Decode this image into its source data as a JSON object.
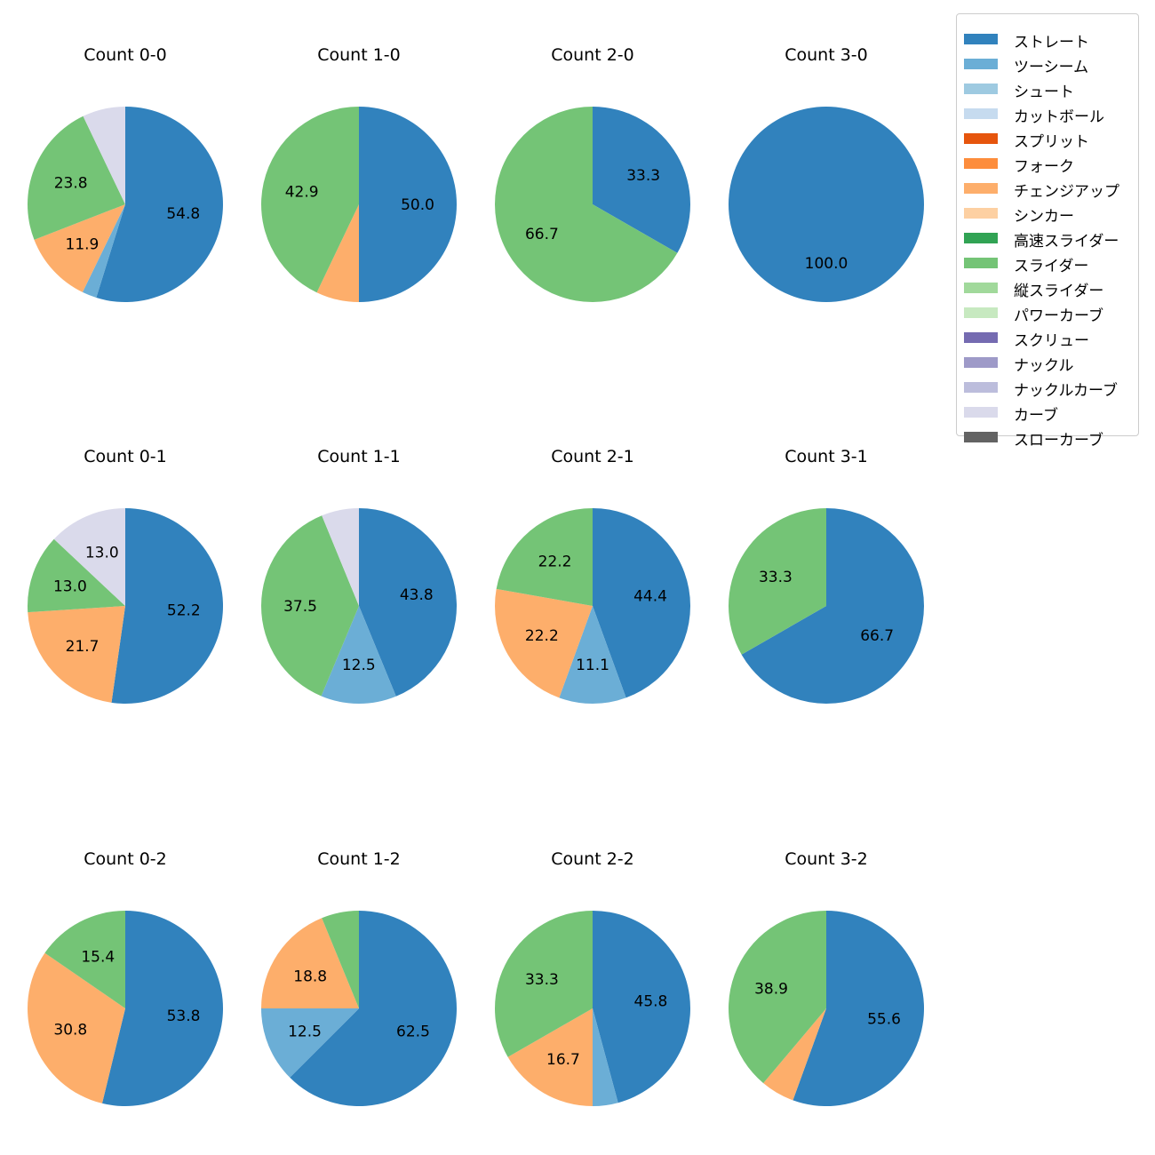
{
  "legend": {
    "items": [
      {
        "label": "ストレート",
        "color": "#3182bd"
      },
      {
        "label": "ツーシーム",
        "color": "#6baed6"
      },
      {
        "label": "シュート",
        "color": "#9ecae1"
      },
      {
        "label": "カットボール",
        "color": "#c6dbef"
      },
      {
        "label": "スプリット",
        "color": "#e6550d"
      },
      {
        "label": "フォーク",
        "color": "#fd8d3c"
      },
      {
        "label": "チェンジアップ",
        "color": "#fdae6b"
      },
      {
        "label": "シンカー",
        "color": "#fdd0a2"
      },
      {
        "label": "高速スライダー",
        "color": "#31a354"
      },
      {
        "label": "スライダー",
        "color": "#74c476"
      },
      {
        "label": "縦スライダー",
        "color": "#a1d99b"
      },
      {
        "label": "パワーカーブ",
        "color": "#c7e9c0"
      },
      {
        "label": "スクリュー",
        "color": "#756bb1"
      },
      {
        "label": "ナックル",
        "color": "#9e9ac8"
      },
      {
        "label": "ナックルカーブ",
        "color": "#bcbddc"
      },
      {
        "label": "カーブ",
        "color": "#dadaeb"
      },
      {
        "label": "スローカーブ",
        "color": "#636363"
      }
    ]
  },
  "chart_data": [
    {
      "type": "pie",
      "title": "Count 0-0",
      "labels": [
        "ストレート",
        "ツーシーム",
        "チェンジアップ",
        "スライダー",
        "カーブ"
      ],
      "values": [
        54.8,
        2.4,
        11.9,
        23.8,
        7.1
      ],
      "data_labels": [
        "54.8",
        "",
        "11.9",
        "23.8",
        ""
      ]
    },
    {
      "type": "pie",
      "title": "Count 1-0",
      "labels": [
        "ストレート",
        "チェンジアップ",
        "スライダー"
      ],
      "values": [
        50.0,
        7.1,
        42.9
      ],
      "data_labels": [
        "50.0",
        "",
        "42.9"
      ]
    },
    {
      "type": "pie",
      "title": "Count 2-0",
      "labels": [
        "ストレート",
        "スライダー"
      ],
      "values": [
        33.3,
        66.7
      ],
      "data_labels": [
        "33.3",
        "66.7"
      ]
    },
    {
      "type": "pie",
      "title": "Count 3-0",
      "labels": [
        "ストレート"
      ],
      "values": [
        100.0
      ],
      "data_labels": [
        "100.0"
      ]
    },
    {
      "type": "pie",
      "title": "Count 0-1",
      "labels": [
        "ストレート",
        "チェンジアップ",
        "スライダー",
        "カーブ"
      ],
      "values": [
        52.2,
        21.7,
        13.0,
        13.0
      ],
      "data_labels": [
        "52.2",
        "21.7",
        "13.0",
        "13.0"
      ]
    },
    {
      "type": "pie",
      "title": "Count 1-1",
      "labels": [
        "ストレート",
        "ツーシーム",
        "スライダー",
        "カーブ"
      ],
      "values": [
        43.8,
        12.5,
        37.5,
        6.2
      ],
      "data_labels": [
        "43.8",
        "12.5",
        "37.5",
        ""
      ]
    },
    {
      "type": "pie",
      "title": "Count 2-1",
      "labels": [
        "ストレート",
        "ツーシーム",
        "チェンジアップ",
        "スライダー"
      ],
      "values": [
        44.4,
        11.1,
        22.2,
        22.2
      ],
      "data_labels": [
        "44.4",
        "11.1",
        "22.2",
        "22.2"
      ]
    },
    {
      "type": "pie",
      "title": "Count 3-1",
      "labels": [
        "ストレート",
        "スライダー"
      ],
      "values": [
        66.7,
        33.3
      ],
      "data_labels": [
        "66.7",
        "33.3"
      ]
    },
    {
      "type": "pie",
      "title": "Count 0-2",
      "labels": [
        "ストレート",
        "チェンジアップ",
        "スライダー"
      ],
      "values": [
        53.8,
        30.8,
        15.4
      ],
      "data_labels": [
        "53.8",
        "30.8",
        "15.4"
      ]
    },
    {
      "type": "pie",
      "title": "Count 1-2",
      "labels": [
        "ストレート",
        "ツーシーム",
        "チェンジアップ",
        "スライダー"
      ],
      "values": [
        62.5,
        12.5,
        18.8,
        6.2
      ],
      "data_labels": [
        "62.5",
        "12.5",
        "18.8",
        ""
      ]
    },
    {
      "type": "pie",
      "title": "Count 2-2",
      "labels": [
        "ストレート",
        "ツーシーム",
        "チェンジアップ",
        "スライダー"
      ],
      "values": [
        45.8,
        4.2,
        16.7,
        33.3
      ],
      "data_labels": [
        "45.8",
        "",
        "16.7",
        "33.3"
      ]
    },
    {
      "type": "pie",
      "title": "Count 3-2",
      "labels": [
        "ストレート",
        "チェンジアップ",
        "スライダー"
      ],
      "values": [
        55.6,
        5.6,
        38.9
      ],
      "data_labels": [
        "55.6",
        "",
        "38.9"
      ]
    }
  ]
}
